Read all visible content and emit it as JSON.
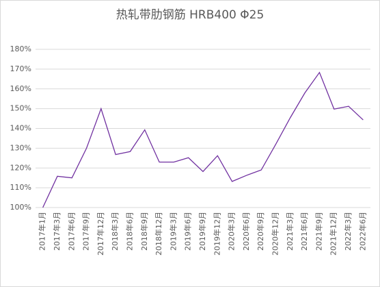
{
  "chart_data": {
    "type": "line",
    "title": "热轧带肋钢筋 HRB400 Φ25",
    "categories": [
      "2017年1月",
      "2017年3月",
      "2017年6月",
      "2017年9月",
      "2017年12月",
      "2018年3月",
      "2018年6月",
      "2018年9月",
      "2018年12月",
      "2019年3月",
      "2019年6月",
      "2019年9月",
      "2019年12月",
      "2020年3月",
      "2020年6月",
      "2020年9月",
      "2020年12月",
      "2021年3月",
      "2021年6月",
      "2021年9月",
      "2021年12月",
      "2022年3月",
      "2022年6月"
    ],
    "series": [
      {
        "color": "#7030a0",
        "values": [
          100,
          115.8,
          115,
          130,
          150,
          126.8,
          128.3,
          139.3,
          123,
          123,
          125.2,
          118.2,
          126.2,
          113.2,
          116.3,
          119,
          132,
          145.5,
          158,
          168.3,
          149.8,
          151.2,
          144.3
        ]
      }
    ],
    "ylim": [
      100,
      180
    ],
    "yticks": [
      {
        "value": 100,
        "label": "100%"
      },
      {
        "value": 110,
        "label": "110%"
      },
      {
        "value": 120,
        "label": "120%"
      },
      {
        "value": 130,
        "label": "130%"
      },
      {
        "value": 140,
        "label": "140%"
      },
      {
        "value": 150,
        "label": "150%"
      },
      {
        "value": 160,
        "label": "160%"
      },
      {
        "value": 170,
        "label": "170%"
      },
      {
        "value": 180,
        "label": "180%"
      }
    ],
    "grid": true
  }
}
